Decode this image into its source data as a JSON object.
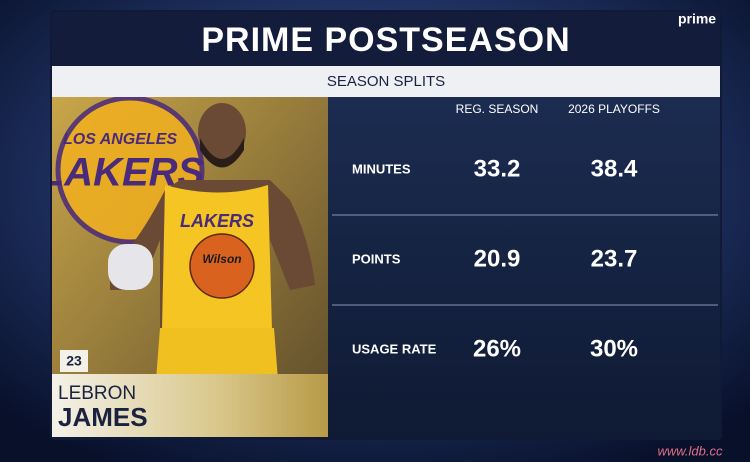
{
  "header": {
    "title": "PRIME POSTSEASON",
    "subtitle": "SEASON SPLITS",
    "logo": "prime"
  },
  "player": {
    "number": "23",
    "first_name": "LEBRON",
    "last_name": "JAMES",
    "team_logo_top": "LOS ANGELES",
    "team_logo_main": "LAKERS",
    "jersey_text": "LAKERS",
    "ball_text": "Wilson"
  },
  "table": {
    "columns": [
      "REG. SEASON",
      "2026 PLAYOFFS"
    ],
    "rows": [
      [
        "MINUTES",
        "33.2",
        "38.4"
      ],
      [
        "POINTS",
        "20.9",
        "23.7"
      ],
      [
        "USAGE RATE",
        "26%",
        "30%"
      ]
    ]
  },
  "watermark": "www.ldb.cc"
}
